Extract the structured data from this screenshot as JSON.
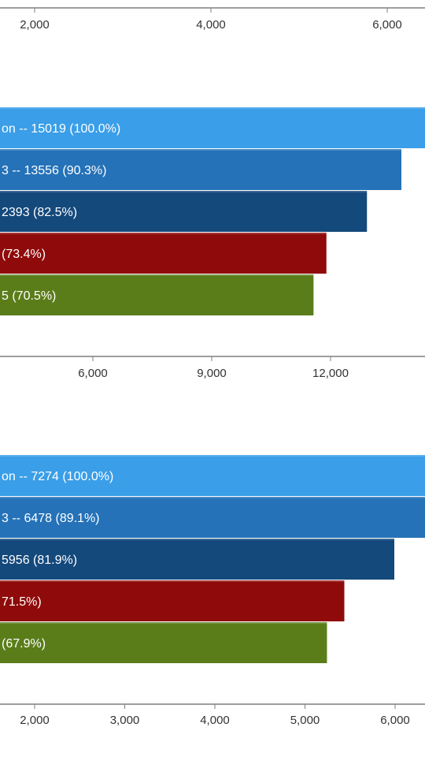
{
  "chart_data": [
    {
      "type": "bar",
      "orientation": "horizontal",
      "axis_ticks": [
        "2,000",
        "4,000",
        "6,000"
      ],
      "tick_values": [
        2000,
        4000,
        6000
      ],
      "axis_position": "top",
      "bars": [
        {
          "label": "on  --  15019 (100.0%)",
          "value": 15019,
          "color": "#3a9ee8"
        },
        {
          "label": "3  --  13556 (90.3%)",
          "value": 13556,
          "color": "#2572b8"
        },
        {
          "label": "2393 (82.5%)",
          "value": 12393,
          "color": "#14497c"
        },
        {
          "label": "(73.4%)",
          "value": 11024,
          "color": "#8f0a0a"
        },
        {
          "label": "5 (70.5%)",
          "value": 10588,
          "color": "#5a7d1a"
        }
      ]
    },
    {
      "type": "bar",
      "orientation": "horizontal",
      "axis_ticks": [
        "6,000",
        "9,000",
        "12,000"
      ],
      "tick_values": [
        6000,
        9000,
        12000
      ],
      "axis_position": "top",
      "bars": [
        {
          "label": "on  --  7274 (100.0%)",
          "value": 7274,
          "color": "#3a9ee8"
        },
        {
          "label": "3  --  6478 (89.1%)",
          "value": 6478,
          "color": "#2572b8"
        },
        {
          "label": "5956 (81.9%)",
          "value": 5956,
          "color": "#14497c"
        },
        {
          "label": "71.5%)",
          "value": 5201,
          "color": "#8f0a0a"
        },
        {
          "label": "(67.9%)",
          "value": 4939,
          "color": "#5a7d1a"
        }
      ]
    },
    {
      "type": "axis",
      "axis_ticks": [
        "2,000",
        "3,000",
        "4,000",
        "5,000",
        "6,000"
      ],
      "tick_values": [
        2000,
        3000,
        4000,
        5000,
        6000
      ],
      "axis_position": "bottom"
    }
  ]
}
